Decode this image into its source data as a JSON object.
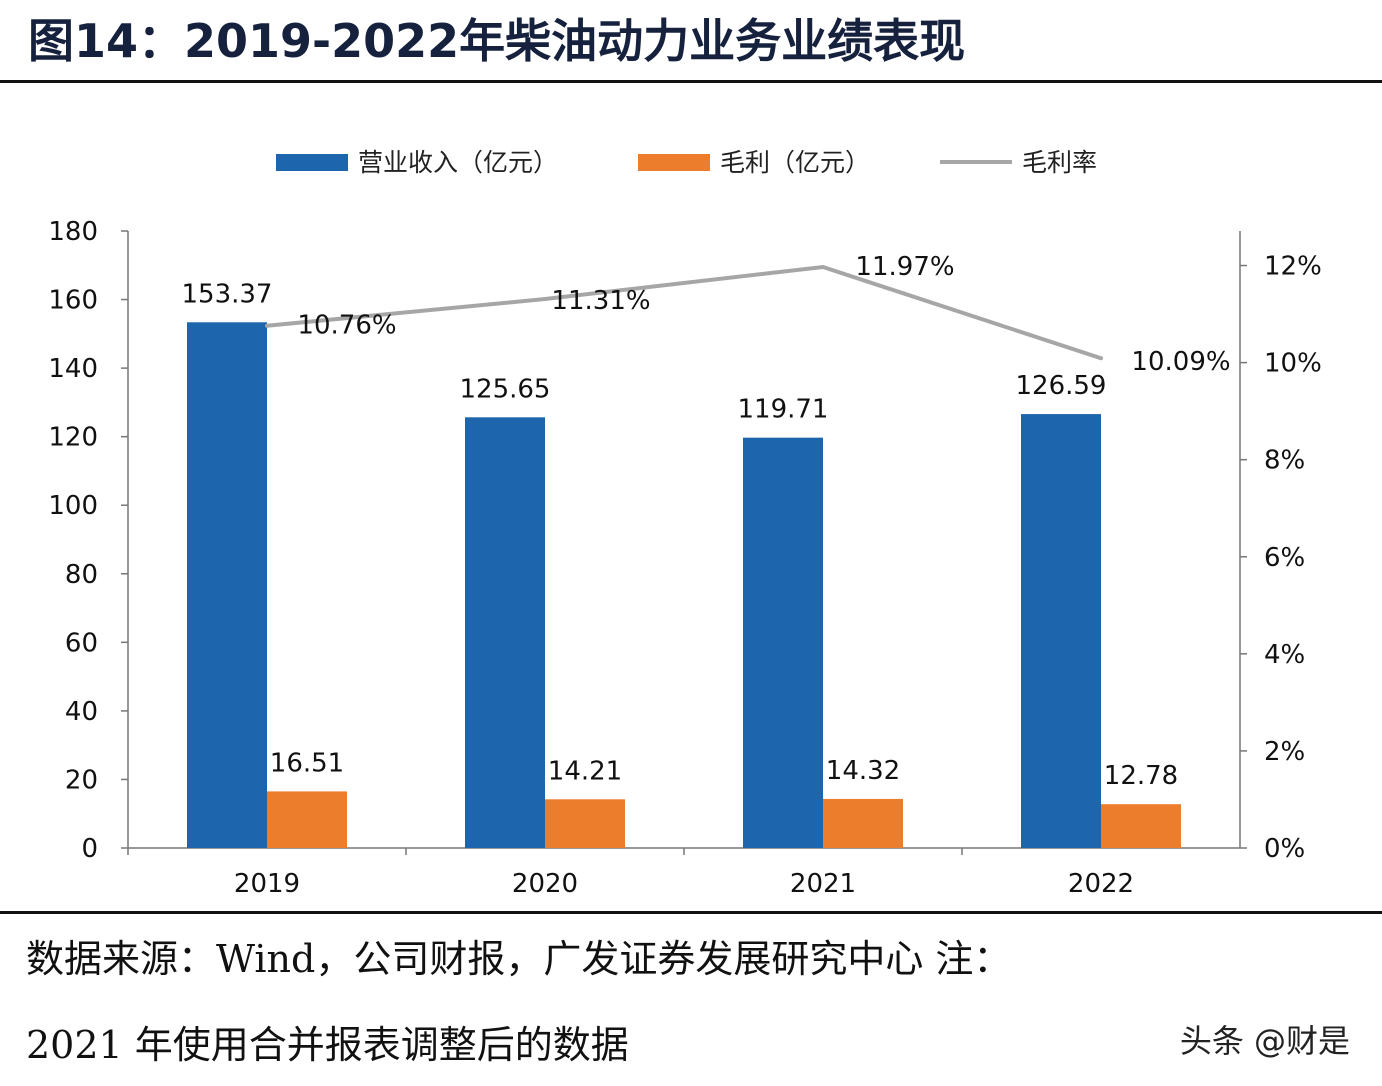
{
  "figure": {
    "title": "图14：2019-2022年柴油动力业务业绩表现",
    "source": "数据来源：Wind，公司财报，广发证券发展研究中心  注：",
    "note": "2021 年使用合并报表调整后的数据",
    "watermark": "头条 @财是"
  },
  "colors": {
    "revenue": "#1d66ad",
    "gross_profit": "#ec7d2c",
    "margin": "#a6a6a6"
  },
  "chart_data": {
    "type": "bar",
    "categories": [
      "2019",
      "2020",
      "2021",
      "2022"
    ],
    "series": [
      {
        "name": "营业收入（亿元）",
        "kind": "bar",
        "axis": "left",
        "values": [
          153.37,
          125.65,
          119.71,
          126.59
        ],
        "labels": [
          "153.37",
          "125.65",
          "119.71",
          "126.59"
        ]
      },
      {
        "name": "毛利（亿元）",
        "kind": "bar",
        "axis": "left",
        "values": [
          16.51,
          14.21,
          14.32,
          12.78
        ],
        "labels": [
          "16.51",
          "14.21",
          "14.32",
          "12.78"
        ]
      },
      {
        "name": "毛利率",
        "kind": "line",
        "axis": "right",
        "values": [
          10.76,
          11.31,
          11.97,
          10.09
        ],
        "labels": [
          "10.76%",
          "11.31%",
          "11.97%",
          "10.09%"
        ]
      }
    ],
    "y_left": {
      "min": 0,
      "max": 180,
      "ticks": [
        "0",
        "20",
        "40",
        "60",
        "80",
        "100",
        "120",
        "140",
        "160",
        "180"
      ]
    },
    "y_right": {
      "min": 0,
      "max": 13,
      "ticks": [
        "0%",
        "2%",
        "4%",
        "6%",
        "8%",
        "10%",
        "12%"
      ]
    },
    "legend_position": "top-center",
    "grid": false
  }
}
